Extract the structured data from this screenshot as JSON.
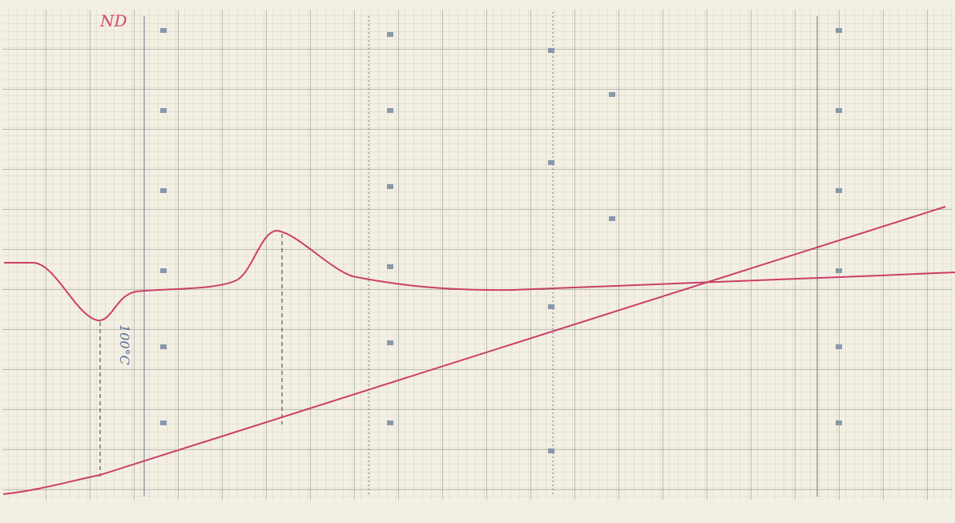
{
  "annotations": {
    "sample_label": "ND",
    "peak_temperature": "100°C"
  }
}
